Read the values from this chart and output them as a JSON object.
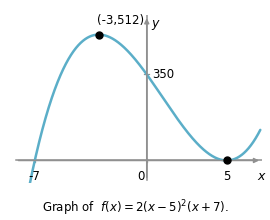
{
  "title": "Graph of  $f(x) = 2(x - 5)^2(x + 7)$.",
  "curve_color": "#5baec8",
  "curve_linewidth": 1.8,
  "point_color": "#000000",
  "point_size": 5,
  "axis_color": "#909090",
  "x_label": "x",
  "y_label": "y",
  "local_max": [
    -3,
    512
  ],
  "local_min": [
    5,
    0
  ],
  "y_intercept": 350,
  "label_max": "(-3,512)",
  "label_350": "350",
  "label_neg7": "-7",
  "label_0": "0",
  "label_5": "5",
  "xlim": [
    -8.5,
    7.2
  ],
  "ylim": [
    -90,
    590
  ],
  "background_color": "#ffffff",
  "title_fontsize": 8.5,
  "tick_fontsize": 8.5,
  "annotation_fontsize": 8.5
}
